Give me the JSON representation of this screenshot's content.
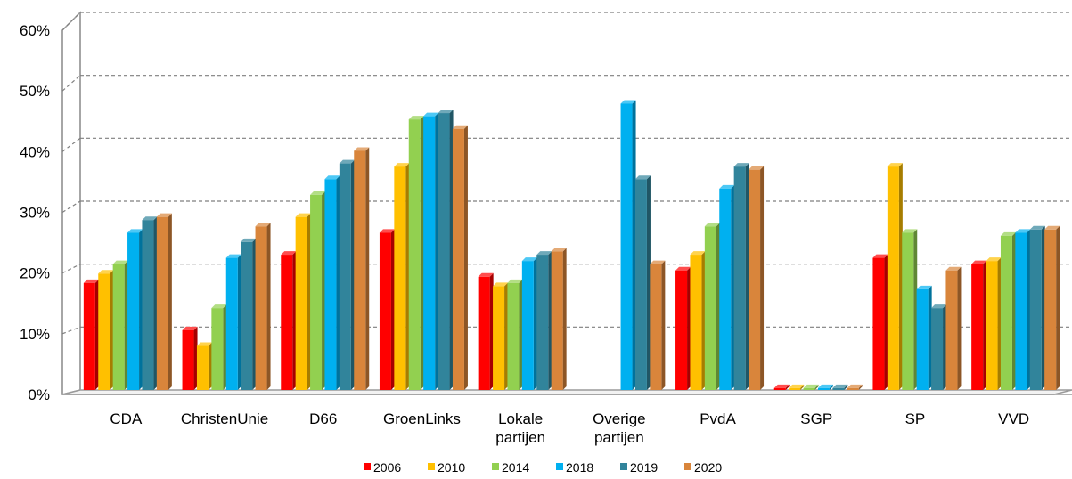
{
  "chart_data": {
    "type": "bar",
    "title": "",
    "xlabel": "",
    "ylabel": "",
    "categories": [
      [
        "CDA"
      ],
      [
        "ChristenUnie"
      ],
      [
        "D66"
      ],
      [
        "GroenLinks"
      ],
      [
        "Lokale",
        "partijen"
      ],
      [
        "Overige",
        "partijen"
      ],
      [
        "PvdA"
      ],
      [
        "SGP"
      ],
      [
        "SP"
      ],
      [
        "VVD"
      ]
    ],
    "yticks": [
      "0%",
      "10%",
      "20%",
      "30%",
      "40%",
      "50%",
      "60%"
    ],
    "ylim": [
      0,
      60
    ],
    "grid": true,
    "legend_position": "bottom",
    "series": [
      {
        "name": "2006",
        "color": "#ff0000",
        "values": [
          17,
          9.5,
          21.5,
          25,
          18,
          0,
          19,
          0.3,
          21,
          20
        ]
      },
      {
        "name": "2010",
        "color": "#ffc000",
        "values": [
          18.5,
          7,
          27.5,
          35.5,
          16.5,
          0,
          21.5,
          0.3,
          35.5,
          20.5
        ]
      },
      {
        "name": "2014",
        "color": "#92d050",
        "values": [
          20,
          13,
          31,
          43,
          17,
          0,
          26,
          0.3,
          25,
          24.5
        ]
      },
      {
        "name": "2018",
        "color": "#00b0f0",
        "values": [
          25,
          21,
          33.5,
          43.5,
          20.5,
          45.5,
          32,
          0.3,
          16,
          25
        ]
      },
      {
        "name": "2019",
        "color": "#31849b",
        "values": [
          27,
          23.5,
          36,
          44,
          21.5,
          33.5,
          35.5,
          0.3,
          13,
          25.5
        ]
      },
      {
        "name": "2020",
        "color": "#d9853b",
        "values": [
          27.5,
          26,
          38,
          41.5,
          22,
          20,
          35,
          0.3,
          19,
          25.5
        ]
      }
    ]
  }
}
